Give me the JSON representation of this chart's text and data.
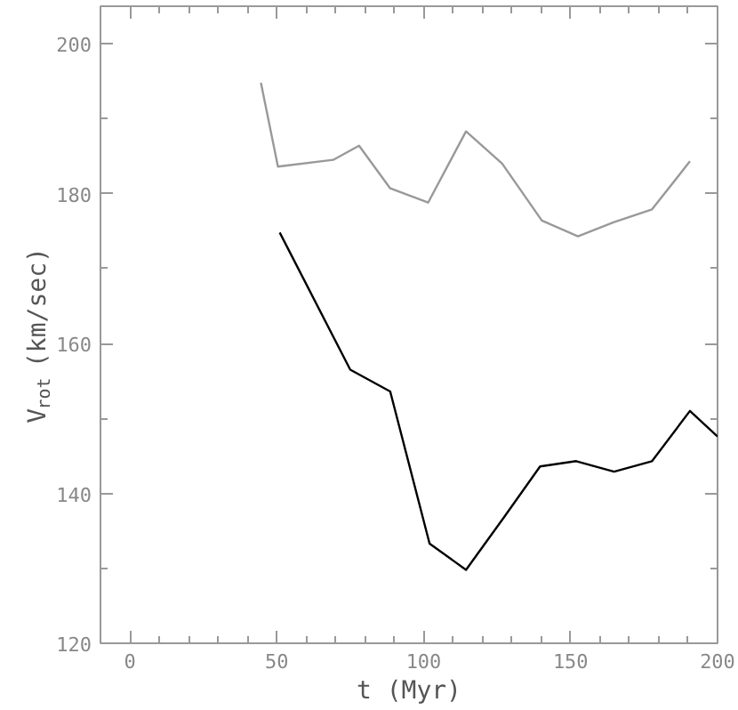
{
  "chart_data": {
    "type": "line",
    "xlabel": "t (Myr)",
    "ylabel": "V$_{rot}$ (km/sec)",
    "xlim": [
      -10,
      200
    ],
    "ylim": [
      120,
      205
    ],
    "xticks": [
      0,
      50,
      100,
      150,
      200
    ],
    "yticks": [
      120,
      140,
      160,
      180,
      200
    ],
    "grid": false,
    "marker": "none",
    "line_style": "solid",
    "series": [
      {
        "color": "#999999",
        "x": [
          44.6,
          50.4,
          69.2,
          78,
          88.6,
          101.5,
          114.4,
          126.7,
          140.2,
          152.5,
          164.8,
          177.7,
          190.6
        ],
        "values": [
          194.8,
          183.6,
          184.5,
          186.4,
          180.7,
          178.8,
          188.3,
          184.0,
          176.4,
          174.3,
          176.2,
          177.9,
          184.3
        ]
      },
      {
        "color": "#000000",
        "x": [
          51,
          75,
          88.6,
          102,
          114.4,
          127.3,
          139.6,
          151.9,
          164.8,
          177.7,
          190.6,
          200
        ],
        "values": [
          174.8,
          156.5,
          153.6,
          133.3,
          129.8,
          136.8,
          143.6,
          144.3,
          142.9,
          144.3,
          151.0,
          147.6
        ]
      }
    ]
  }
}
